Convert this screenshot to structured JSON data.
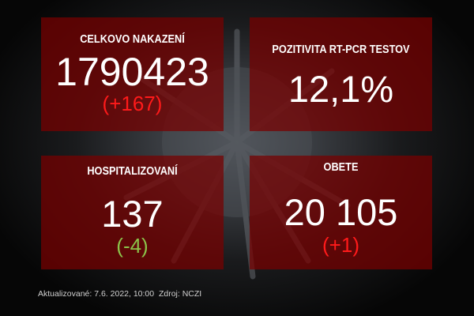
{
  "cards": [
    {
      "title": "CELKOVO NAKAZENÍ",
      "value": "1790423",
      "delta": "(+167)",
      "delta_color": "#ff1a1a"
    },
    {
      "title": "POZITIVITA RT-PCR TESTOV",
      "value": "12,1%"
    },
    {
      "title": "HOSPITALIZOVANÍ",
      "value": "137",
      "delta": "(-4)",
      "delta_color": "#8bc34a"
    },
    {
      "title": "OBETE",
      "value": "20 105",
      "delta": "(+1)",
      "delta_color": "#ff1a1a"
    }
  ],
  "footer": {
    "updated": "Aktualizované: 7.6. 2022, 10:00",
    "source": "Zdroj: NCZI"
  },
  "colors": {
    "card_bg": "#7a0000",
    "background": "#0a0a0a"
  }
}
